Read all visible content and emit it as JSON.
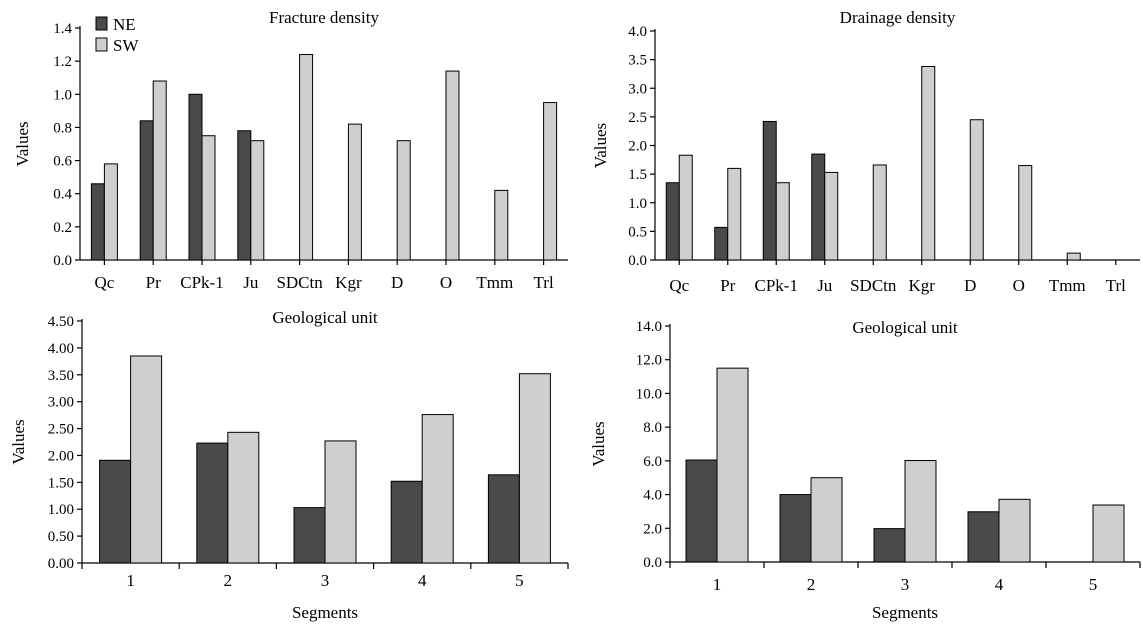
{
  "colors": {
    "NE": "#4a4a4a",
    "SW": "#cfcfcf"
  },
  "legend": [
    {
      "label": "NE",
      "series": "NE"
    },
    {
      "label": "SW",
      "series": "SW"
    }
  ],
  "chart_data": [
    {
      "type": "bar",
      "title": "Fracture density",
      "xlabel": "",
      "ylabel": "Values",
      "ylim": [
        0,
        1.4
      ],
      "yticks": [
        "0.0",
        "0.2",
        "0.4",
        "0.6",
        "0.8",
        "1.0",
        "1.2",
        "1.4"
      ],
      "categories": [
        "Qc",
        "Pr",
        "CPk-1",
        "Ju",
        "SDCtn",
        "Kgr",
        "D",
        "O",
        "Tmm",
        "Trl"
      ],
      "series": [
        {
          "name": "NE",
          "values": [
            0.46,
            0.84,
            1.0,
            0.78,
            null,
            null,
            null,
            null,
            null,
            null
          ]
        },
        {
          "name": "SW",
          "values": [
            0.58,
            1.08,
            0.75,
            0.72,
            1.24,
            0.82,
            0.72,
            1.14,
            0.42,
            0.95
          ]
        }
      ],
      "legend": "top-left"
    },
    {
      "type": "bar",
      "title": "Drainage density",
      "xlabel": "",
      "ylabel": "Values",
      "ylim": [
        0,
        4.0
      ],
      "yticks": [
        "0.0",
        "0.5",
        "1.0",
        "1.5",
        "2.0",
        "2.5",
        "3.0",
        "3.5",
        "4.0"
      ],
      "categories": [
        "Qc",
        "Pr",
        "CPk-1",
        "Ju",
        "SDCtn",
        "Kgr",
        "D",
        "O",
        "Tmm",
        "Trl"
      ],
      "series": [
        {
          "name": "NE",
          "values": [
            1.35,
            0.57,
            2.42,
            1.85,
            null,
            null,
            null,
            null,
            null,
            null
          ]
        },
        {
          "name": "SW",
          "values": [
            1.83,
            1.6,
            1.35,
            1.53,
            1.66,
            3.38,
            2.45,
            1.65,
            0.12,
            null
          ]
        }
      ]
    },
    {
      "type": "bar",
      "title": "Geological unit",
      "xlabel": "Segments",
      "ylabel": "Values",
      "ylim": [
        0,
        4.5
      ],
      "yticks": [
        "0.00",
        "0.50",
        "1.00",
        "1.50",
        "2.00",
        "2.50",
        "3.00",
        "3.50",
        "4.00",
        "4.50"
      ],
      "categories": [
        "1",
        "2",
        "3",
        "4",
        "5"
      ],
      "series": [
        {
          "name": "NE",
          "values": [
            1.91,
            2.23,
            1.03,
            1.52,
            1.64
          ]
        },
        {
          "name": "SW",
          "values": [
            3.85,
            2.43,
            2.27,
            2.76,
            3.52
          ]
        }
      ]
    },
    {
      "type": "bar",
      "title": "Geological unit",
      "xlabel": "Segments",
      "ylabel": "Values",
      "ylim": [
        0,
        14.0
      ],
      "yticks": [
        "0.0",
        "2.0",
        "4.0",
        "6.0",
        "8.0",
        "10.0",
        "12.0",
        "14.0"
      ],
      "categories": [
        "1",
        "2",
        "3",
        "4",
        "5"
      ],
      "series": [
        {
          "name": "NE",
          "values": [
            6.05,
            4.0,
            1.98,
            2.98,
            null
          ]
        },
        {
          "name": "SW",
          "values": [
            11.5,
            5.0,
            6.02,
            3.72,
            3.38
          ]
        }
      ]
    }
  ]
}
